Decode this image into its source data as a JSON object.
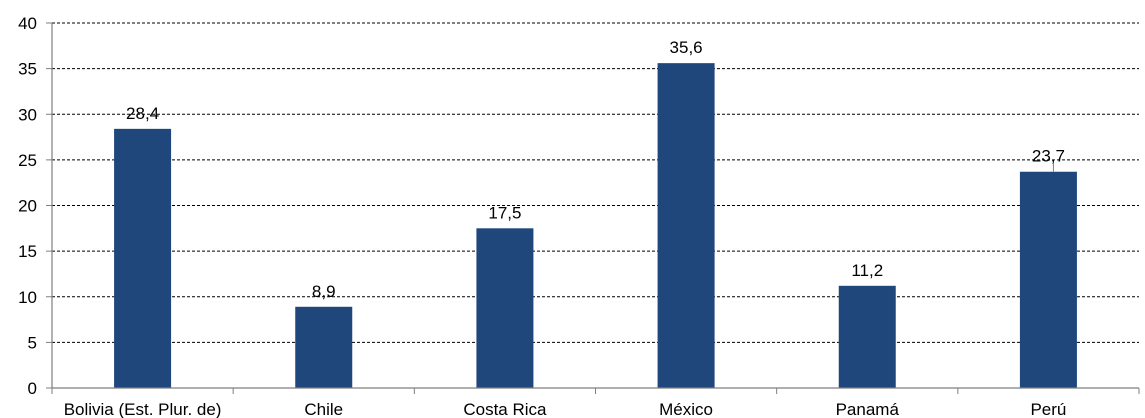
{
  "chart_data": {
    "type": "bar",
    "title": "",
    "xlabel": "",
    "ylabel": "",
    "categories": [
      "Bolivia (Est. Plur. de)",
      "Chile",
      "Costa Rica",
      "México",
      "Panamá",
      "Perú"
    ],
    "values": [
      28.4,
      8.9,
      17.5,
      35.6,
      11.2,
      23.7
    ],
    "data_labels": [
      "28,4",
      "8,9",
      "17,5",
      "35,6",
      "11,2",
      "23,7"
    ],
    "ylim": [
      0,
      40
    ],
    "y_ticks": [
      0,
      5,
      10,
      15,
      20,
      25,
      30,
      35,
      40
    ],
    "y_tick_labels": [
      "0",
      "5",
      "10",
      "15",
      "20",
      "25",
      "30",
      "35",
      "40"
    ],
    "grid": true,
    "grid_style": "dashed",
    "legend": "none",
    "bar_color": "#1f477b"
  }
}
